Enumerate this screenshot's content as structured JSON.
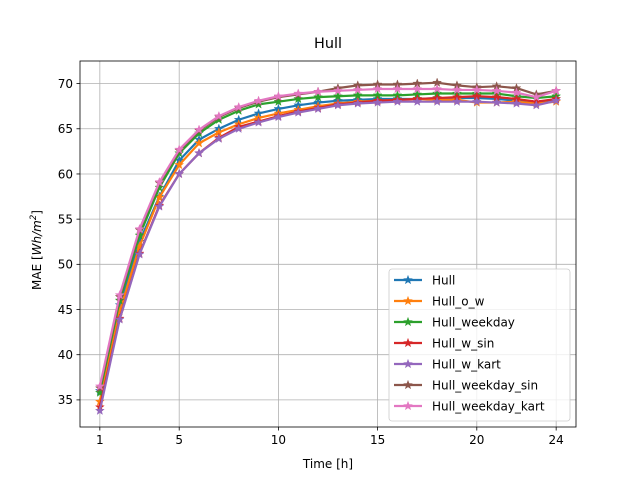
{
  "chart_data": {
    "type": "line",
    "title": "Hull",
    "xlabel": "Time [h]",
    "ylabel_prefix": "MAE [",
    "ylabel_unit_main": "Wh/m",
    "ylabel_unit_sup": "2",
    "ylabel_suffix": "]",
    "xlim": [
      0.0,
      25.0
    ],
    "ylim": [
      32.0,
      72.5
    ],
    "xticks": [
      1,
      5,
      10,
      15,
      20,
      24
    ],
    "yticks": [
      35,
      40,
      45,
      50,
      55,
      60,
      65,
      70
    ],
    "grid": true,
    "legend_position": "lower right",
    "x": [
      1,
      2,
      3,
      4,
      5,
      6,
      7,
      8,
      9,
      10,
      11,
      12,
      13,
      14,
      15,
      16,
      17,
      18,
      19,
      20,
      21,
      22,
      23,
      24
    ],
    "series": [
      {
        "name": "Hull",
        "color": "#1f77b4",
        "marker": "star",
        "values": [
          36.0,
          45.5,
          52.5,
          57.5,
          61.5,
          63.8,
          65.0,
          66.0,
          66.7,
          67.2,
          67.6,
          67.9,
          68.1,
          68.2,
          68.3,
          68.3,
          68.3,
          68.4,
          68.4,
          68.4,
          68.3,
          68.1,
          67.9,
          68.3
        ]
      },
      {
        "name": "Hull_o_w",
        "color": "#ff7f0e",
        "marker": "star",
        "values": [
          34.8,
          44.8,
          52.0,
          57.4,
          61.0,
          63.4,
          64.6,
          65.5,
          66.2,
          66.7,
          67.1,
          67.5,
          67.8,
          68.0,
          68.1,
          68.2,
          68.3,
          68.2,
          68.2,
          67.9,
          67.9,
          68.0,
          67.8,
          68.0
        ]
      },
      {
        "name": "Hull_weekday",
        "color": "#2ca02c",
        "marker": "star",
        "values": [
          35.8,
          46.0,
          53.2,
          58.5,
          62.3,
          64.5,
          66.0,
          67.0,
          67.7,
          68.0,
          68.3,
          68.5,
          68.6,
          68.7,
          68.7,
          68.7,
          68.8,
          68.9,
          68.9,
          68.9,
          68.9,
          68.6,
          68.4,
          68.6
        ]
      },
      {
        "name": "Hull_w_sin",
        "color": "#d62728",
        "marker": "star",
        "values": [
          34.2,
          44.0,
          51.2,
          56.5,
          60.0,
          62.3,
          64.0,
          65.2,
          65.8,
          66.4,
          66.9,
          67.3,
          67.7,
          67.9,
          68.1,
          68.2,
          68.3,
          68.4,
          68.5,
          68.6,
          68.5,
          68.3,
          68.0,
          68.3
        ]
      },
      {
        "name": "Hull_w_kart",
        "color": "#9467bd",
        "marker": "star",
        "values": [
          33.8,
          43.9,
          51.1,
          56.4,
          60.0,
          62.3,
          63.9,
          65.0,
          65.7,
          66.3,
          66.8,
          67.2,
          67.6,
          67.8,
          67.9,
          68.0,
          68.0,
          68.0,
          68.0,
          68.0,
          67.9,
          67.8,
          67.6,
          68.1
        ]
      },
      {
        "name": "Hull_weekday_sin",
        "color": "#8c564b",
        "marker": "star",
        "values": [
          36.3,
          46.4,
          53.8,
          59.0,
          62.6,
          64.8,
          66.3,
          67.3,
          68.0,
          68.5,
          68.8,
          69.1,
          69.5,
          69.8,
          69.9,
          69.9,
          70.0,
          70.1,
          69.8,
          69.6,
          69.7,
          69.5,
          68.8,
          69.2
        ]
      },
      {
        "name": "Hull_weekday_kart",
        "color": "#e377c2",
        "marker": "star",
        "values": [
          36.5,
          46.6,
          53.9,
          59.1,
          62.7,
          64.9,
          66.4,
          67.4,
          68.1,
          68.6,
          68.9,
          69.1,
          69.2,
          69.3,
          69.4,
          69.4,
          69.4,
          69.4,
          69.3,
          69.3,
          69.2,
          69.0,
          68.5,
          69.2
        ]
      }
    ]
  }
}
